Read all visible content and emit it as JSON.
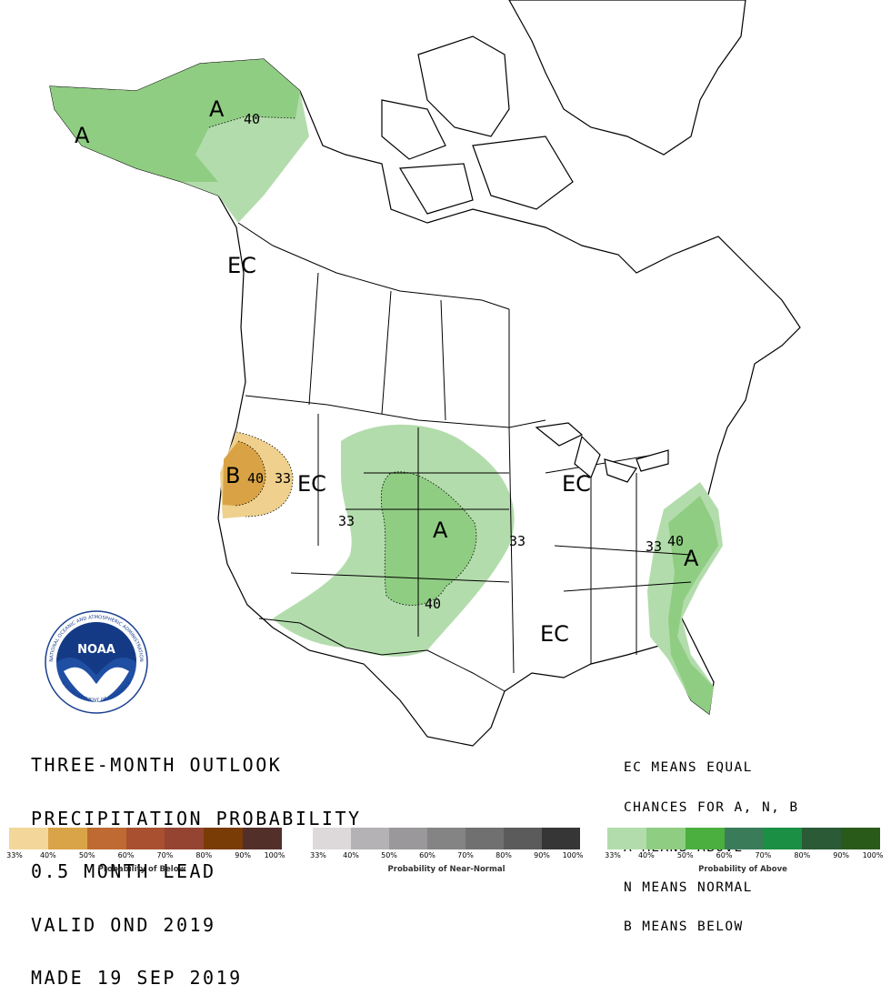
{
  "map_labels": {
    "alaska_a_main": "A",
    "alaska_a_west": "A",
    "alaska_contour": "40",
    "pacific_nw_ec": "EC",
    "oregon_b": "B",
    "oregon_contour_40": "40",
    "oregon_contour_33": "33",
    "west_ec": "EC",
    "rockies_contour_33": "33",
    "plains_a": "A",
    "plains_contour_33": "33",
    "plains_contour_40": "40",
    "great_lakes_ec": "EC",
    "south_ec": "EC",
    "east_coast_a": "A",
    "east_coast_contour_33": "33",
    "east_coast_contour_40": "40"
  },
  "title": {
    "line1": "THREE-MONTH OUTLOOK",
    "line2": "PRECIPITATION PROBABILITY",
    "line3": "0.5 MONTH LEAD",
    "line4": "VALID OND 2019",
    "line5": "MADE 19 SEP 2019"
  },
  "key": {
    "line1": "EC MEANS EQUAL",
    "line2": "CHANCES FOR A, N, B",
    "line3": "A MEANS ABOVE",
    "line4": "N MEANS NORMAL",
    "line5": "B MEANS BELOW"
  },
  "logo": {
    "text": "NOAA",
    "ring_top": "NATIONAL OCEANIC AND ATMOSPHERIC ADMINISTRATION",
    "ring_bottom": "U.S. DEPARTMENT OF COMMERCE"
  },
  "legend": {
    "below": {
      "caption": "Probability of Below",
      "colors": [
        "#f3d79a",
        "#d9a347",
        "#bf6a32",
        "#a8502f",
        "#954431",
        "#7a3c06",
        "#532f2a"
      ],
      "ticks": [
        "33%",
        "40%",
        "50%",
        "60%",
        "70%",
        "80%",
        "90%",
        "100%"
      ]
    },
    "normal": {
      "caption": "Probability of Near-Normal",
      "colors": [
        "#ddd8da",
        "#b4b2b4",
        "#9a989a",
        "#858485",
        "#717071",
        "#5c5b5c",
        "#363636"
      ],
      "ticks": [
        "33%",
        "40%",
        "50%",
        "60%",
        "70%",
        "80%",
        "90%",
        "100%"
      ]
    },
    "above": {
      "caption": "Probability of Above",
      "colors": [
        "#b3dcac",
        "#8fcd82",
        "#4aaf3f",
        "#3a7c5a",
        "#1b8f43",
        "#2a5a36",
        "#2a5a1a"
      ],
      "ticks": [
        "33%",
        "40%",
        "50%",
        "60%",
        "70%",
        "80%",
        "90%",
        "100%"
      ]
    }
  }
}
